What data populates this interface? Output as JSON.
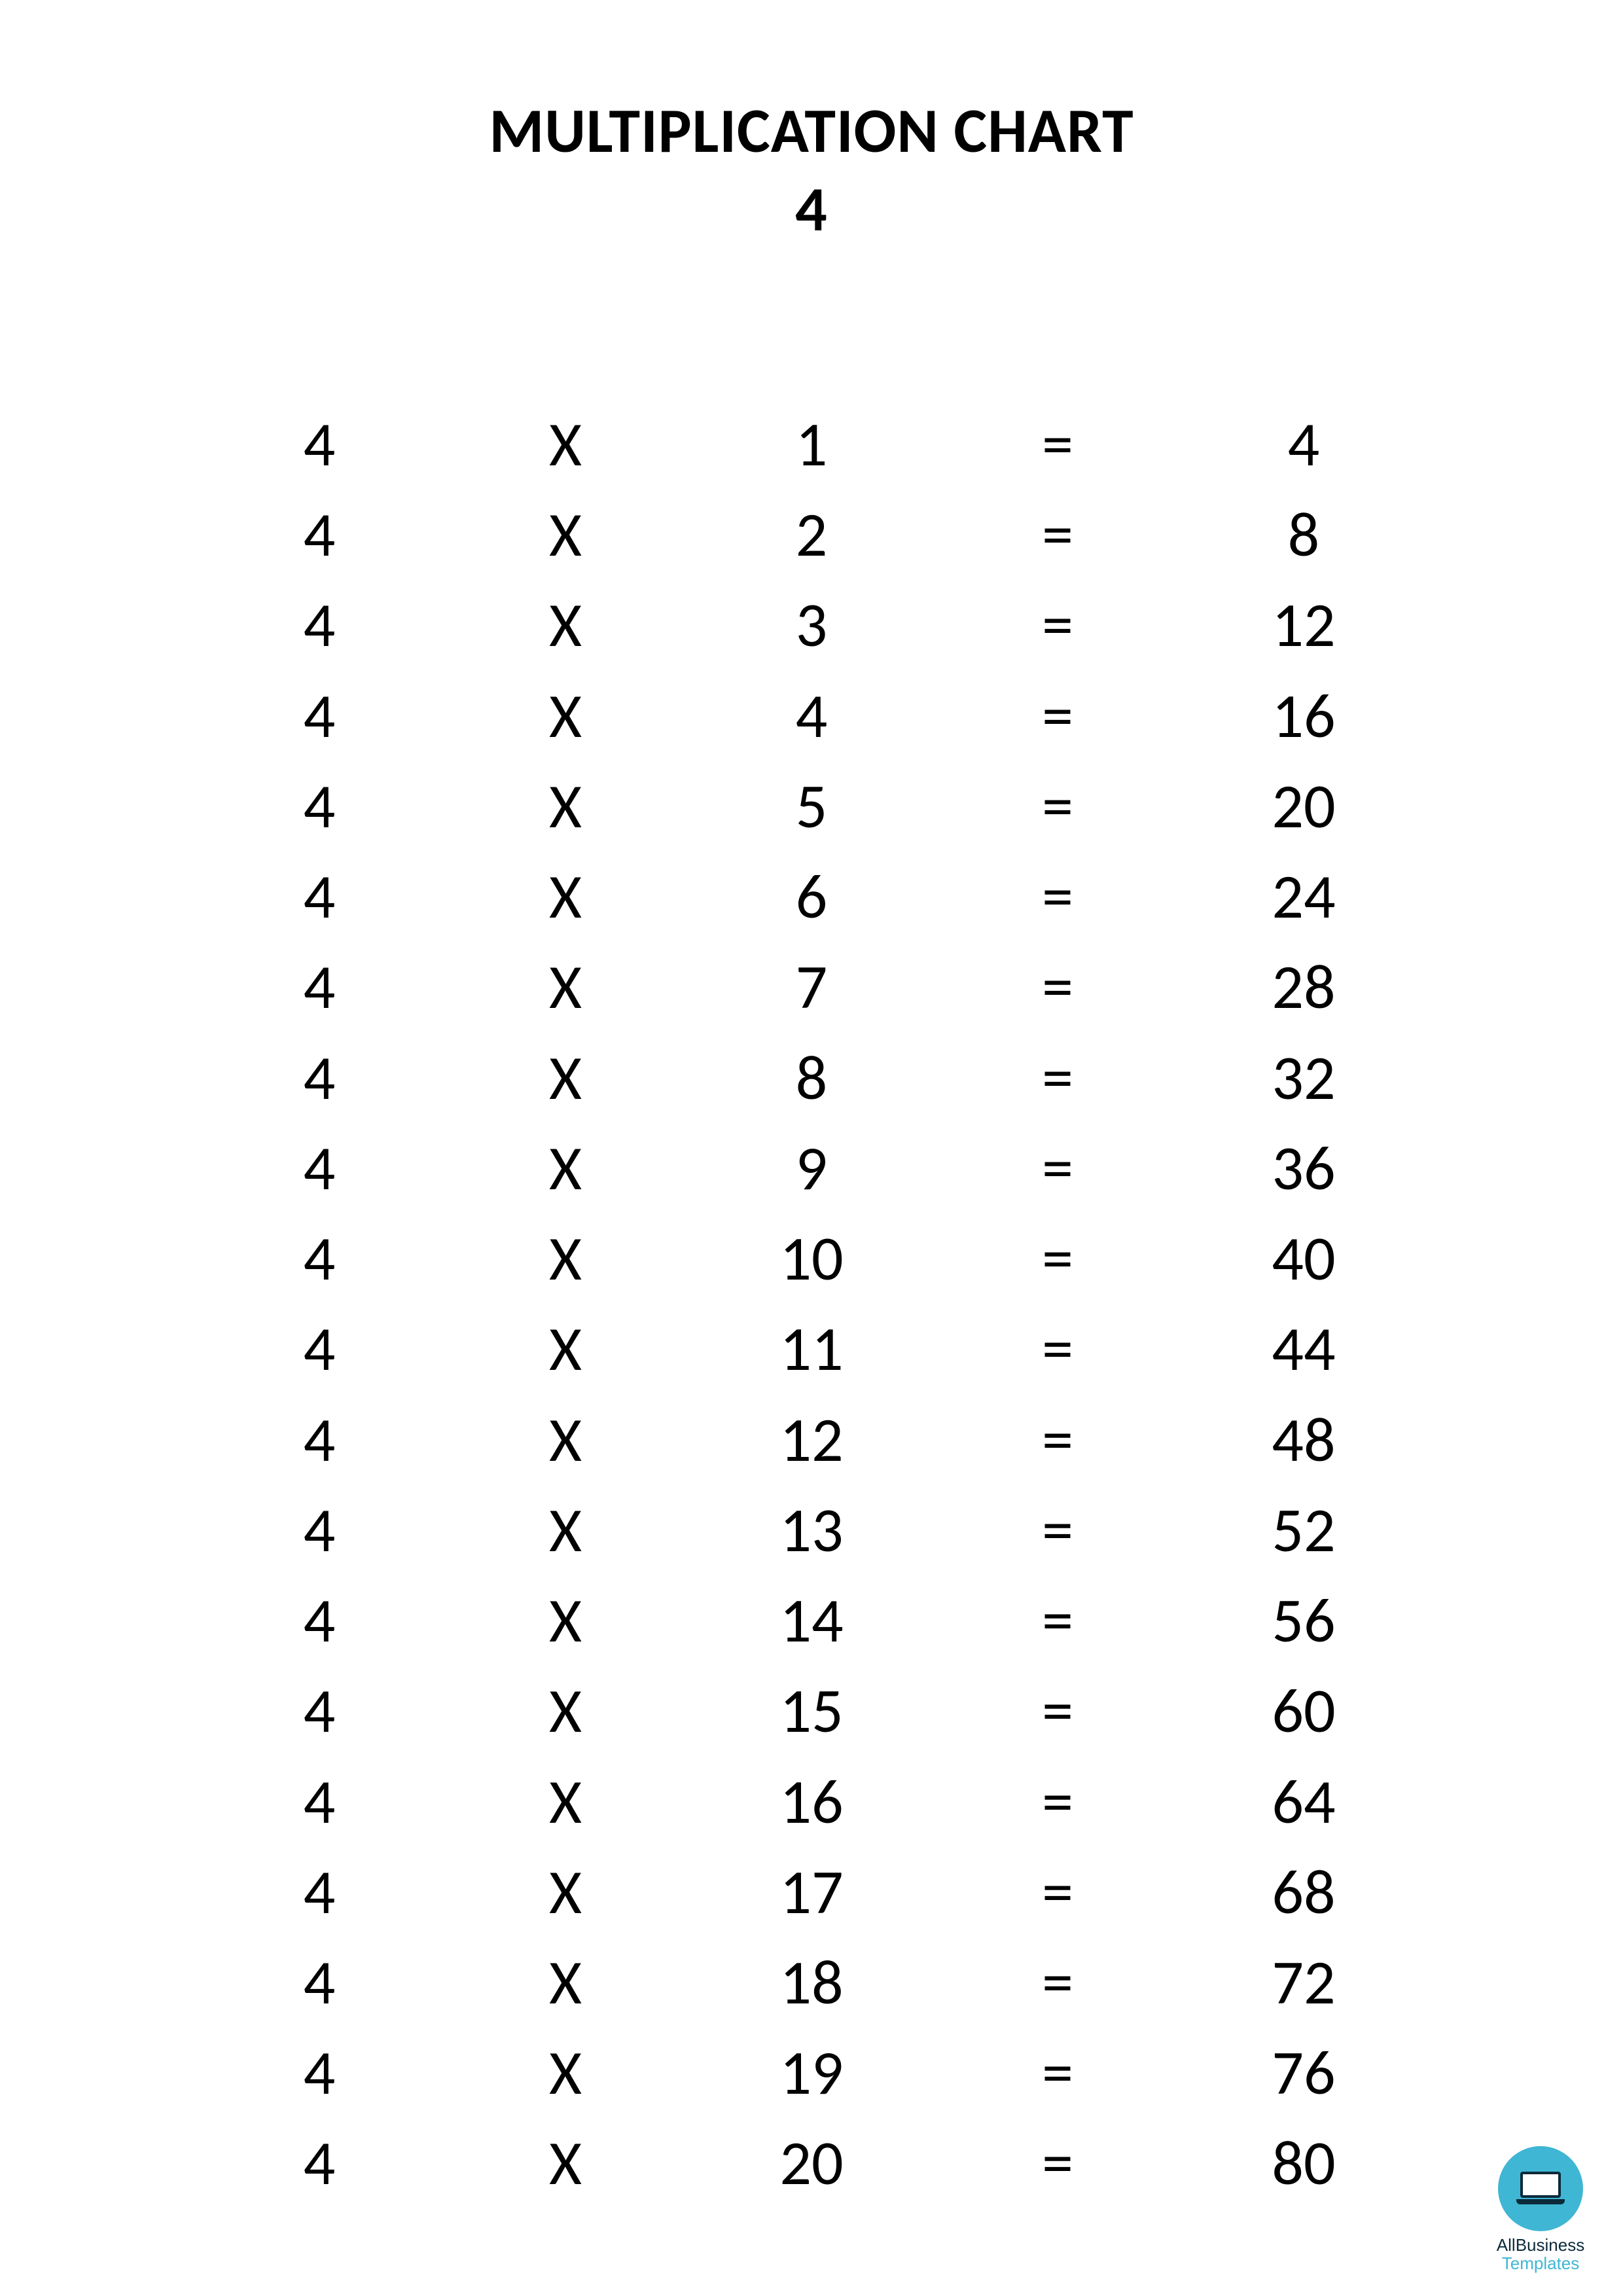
{
  "header": {
    "title_line1": "MULTIPLICATION CHART",
    "title_line2": "4"
  },
  "table": {
    "type": "table",
    "font_size_pt": 72,
    "text_color": "#000000",
    "background_color": "#ffffff",
    "columns": [
      "multiplicand",
      "operator",
      "multiplier",
      "equals",
      "product"
    ],
    "operator_symbol": "X",
    "equals_symbol": "=",
    "rows": [
      {
        "multiplicand": "4",
        "operator": "X",
        "multiplier": "1",
        "equals": "=",
        "product": "4"
      },
      {
        "multiplicand": "4",
        "operator": "X",
        "multiplier": "2",
        "equals": "=",
        "product": "8"
      },
      {
        "multiplicand": "4",
        "operator": "X",
        "multiplier": "3",
        "equals": "=",
        "product": "12"
      },
      {
        "multiplicand": "4",
        "operator": "X",
        "multiplier": "4",
        "equals": "=",
        "product": "16"
      },
      {
        "multiplicand": "4",
        "operator": "X",
        "multiplier": "5",
        "equals": "=",
        "product": "20"
      },
      {
        "multiplicand": "4",
        "operator": "X",
        "multiplier": "6",
        "equals": "=",
        "product": "24"
      },
      {
        "multiplicand": "4",
        "operator": "X",
        "multiplier": "7",
        "equals": "=",
        "product": "28"
      },
      {
        "multiplicand": "4",
        "operator": "X",
        "multiplier": "8",
        "equals": "=",
        "product": "32"
      },
      {
        "multiplicand": "4",
        "operator": "X",
        "multiplier": "9",
        "equals": "=",
        "product": "36"
      },
      {
        "multiplicand": "4",
        "operator": "X",
        "multiplier": "10",
        "equals": "=",
        "product": "40"
      },
      {
        "multiplicand": "4",
        "operator": "X",
        "multiplier": "11",
        "equals": "=",
        "product": "44"
      },
      {
        "multiplicand": "4",
        "operator": "X",
        "multiplier": "12",
        "equals": "=",
        "product": "48"
      },
      {
        "multiplicand": "4",
        "operator": "X",
        "multiplier": "13",
        "equals": "=",
        "product": "52"
      },
      {
        "multiplicand": "4",
        "operator": "X",
        "multiplier": "14",
        "equals": "=",
        "product": "56"
      },
      {
        "multiplicand": "4",
        "operator": "X",
        "multiplier": "15",
        "equals": "=",
        "product": "60"
      },
      {
        "multiplicand": "4",
        "operator": "X",
        "multiplier": "16",
        "equals": "=",
        "product": "64"
      },
      {
        "multiplicand": "4",
        "operator": "X",
        "multiplier": "17",
        "equals": "=",
        "product": "68"
      },
      {
        "multiplicand": "4",
        "operator": "X",
        "multiplier": "18",
        "equals": "=",
        "product": "72"
      },
      {
        "multiplicand": "4",
        "operator": "X",
        "multiplier": "19",
        "equals": "=",
        "product": "76"
      },
      {
        "multiplicand": "4",
        "operator": "X",
        "multiplier": "20",
        "equals": "=",
        "product": "80"
      }
    ]
  },
  "watermark": {
    "line1": "AllBusiness",
    "line2": "Templates",
    "circle_color": "#3fb6d3",
    "icon_color": "#0b2a3a"
  }
}
